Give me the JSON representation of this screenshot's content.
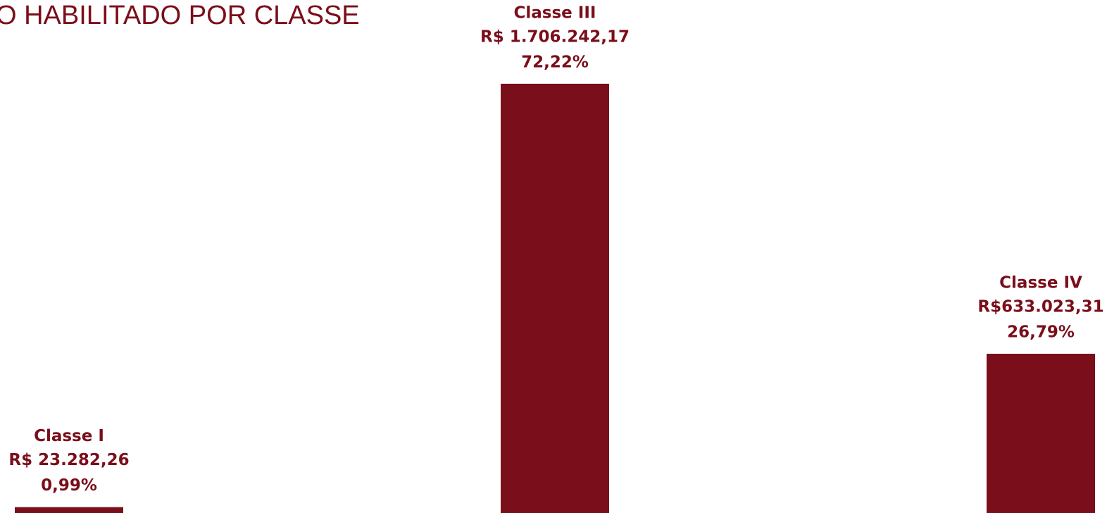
{
  "chart_data": {
    "type": "bar",
    "title": "O HABILITADO POR CLASSE",
    "categories": [
      "Classe I",
      "Classe III",
      "Classe IV"
    ],
    "values": [
      23282.26,
      1706242.17,
      633023.31
    ],
    "value_labels": [
      "R$ 23.282,26",
      "R$ 1.706.242,17",
      "R$633.023,31"
    ],
    "percent_labels": [
      "0,99%",
      "72,22%",
      "26,79%"
    ],
    "color": "#7a0e1a",
    "ylim": [
      0,
      2000000
    ]
  }
}
